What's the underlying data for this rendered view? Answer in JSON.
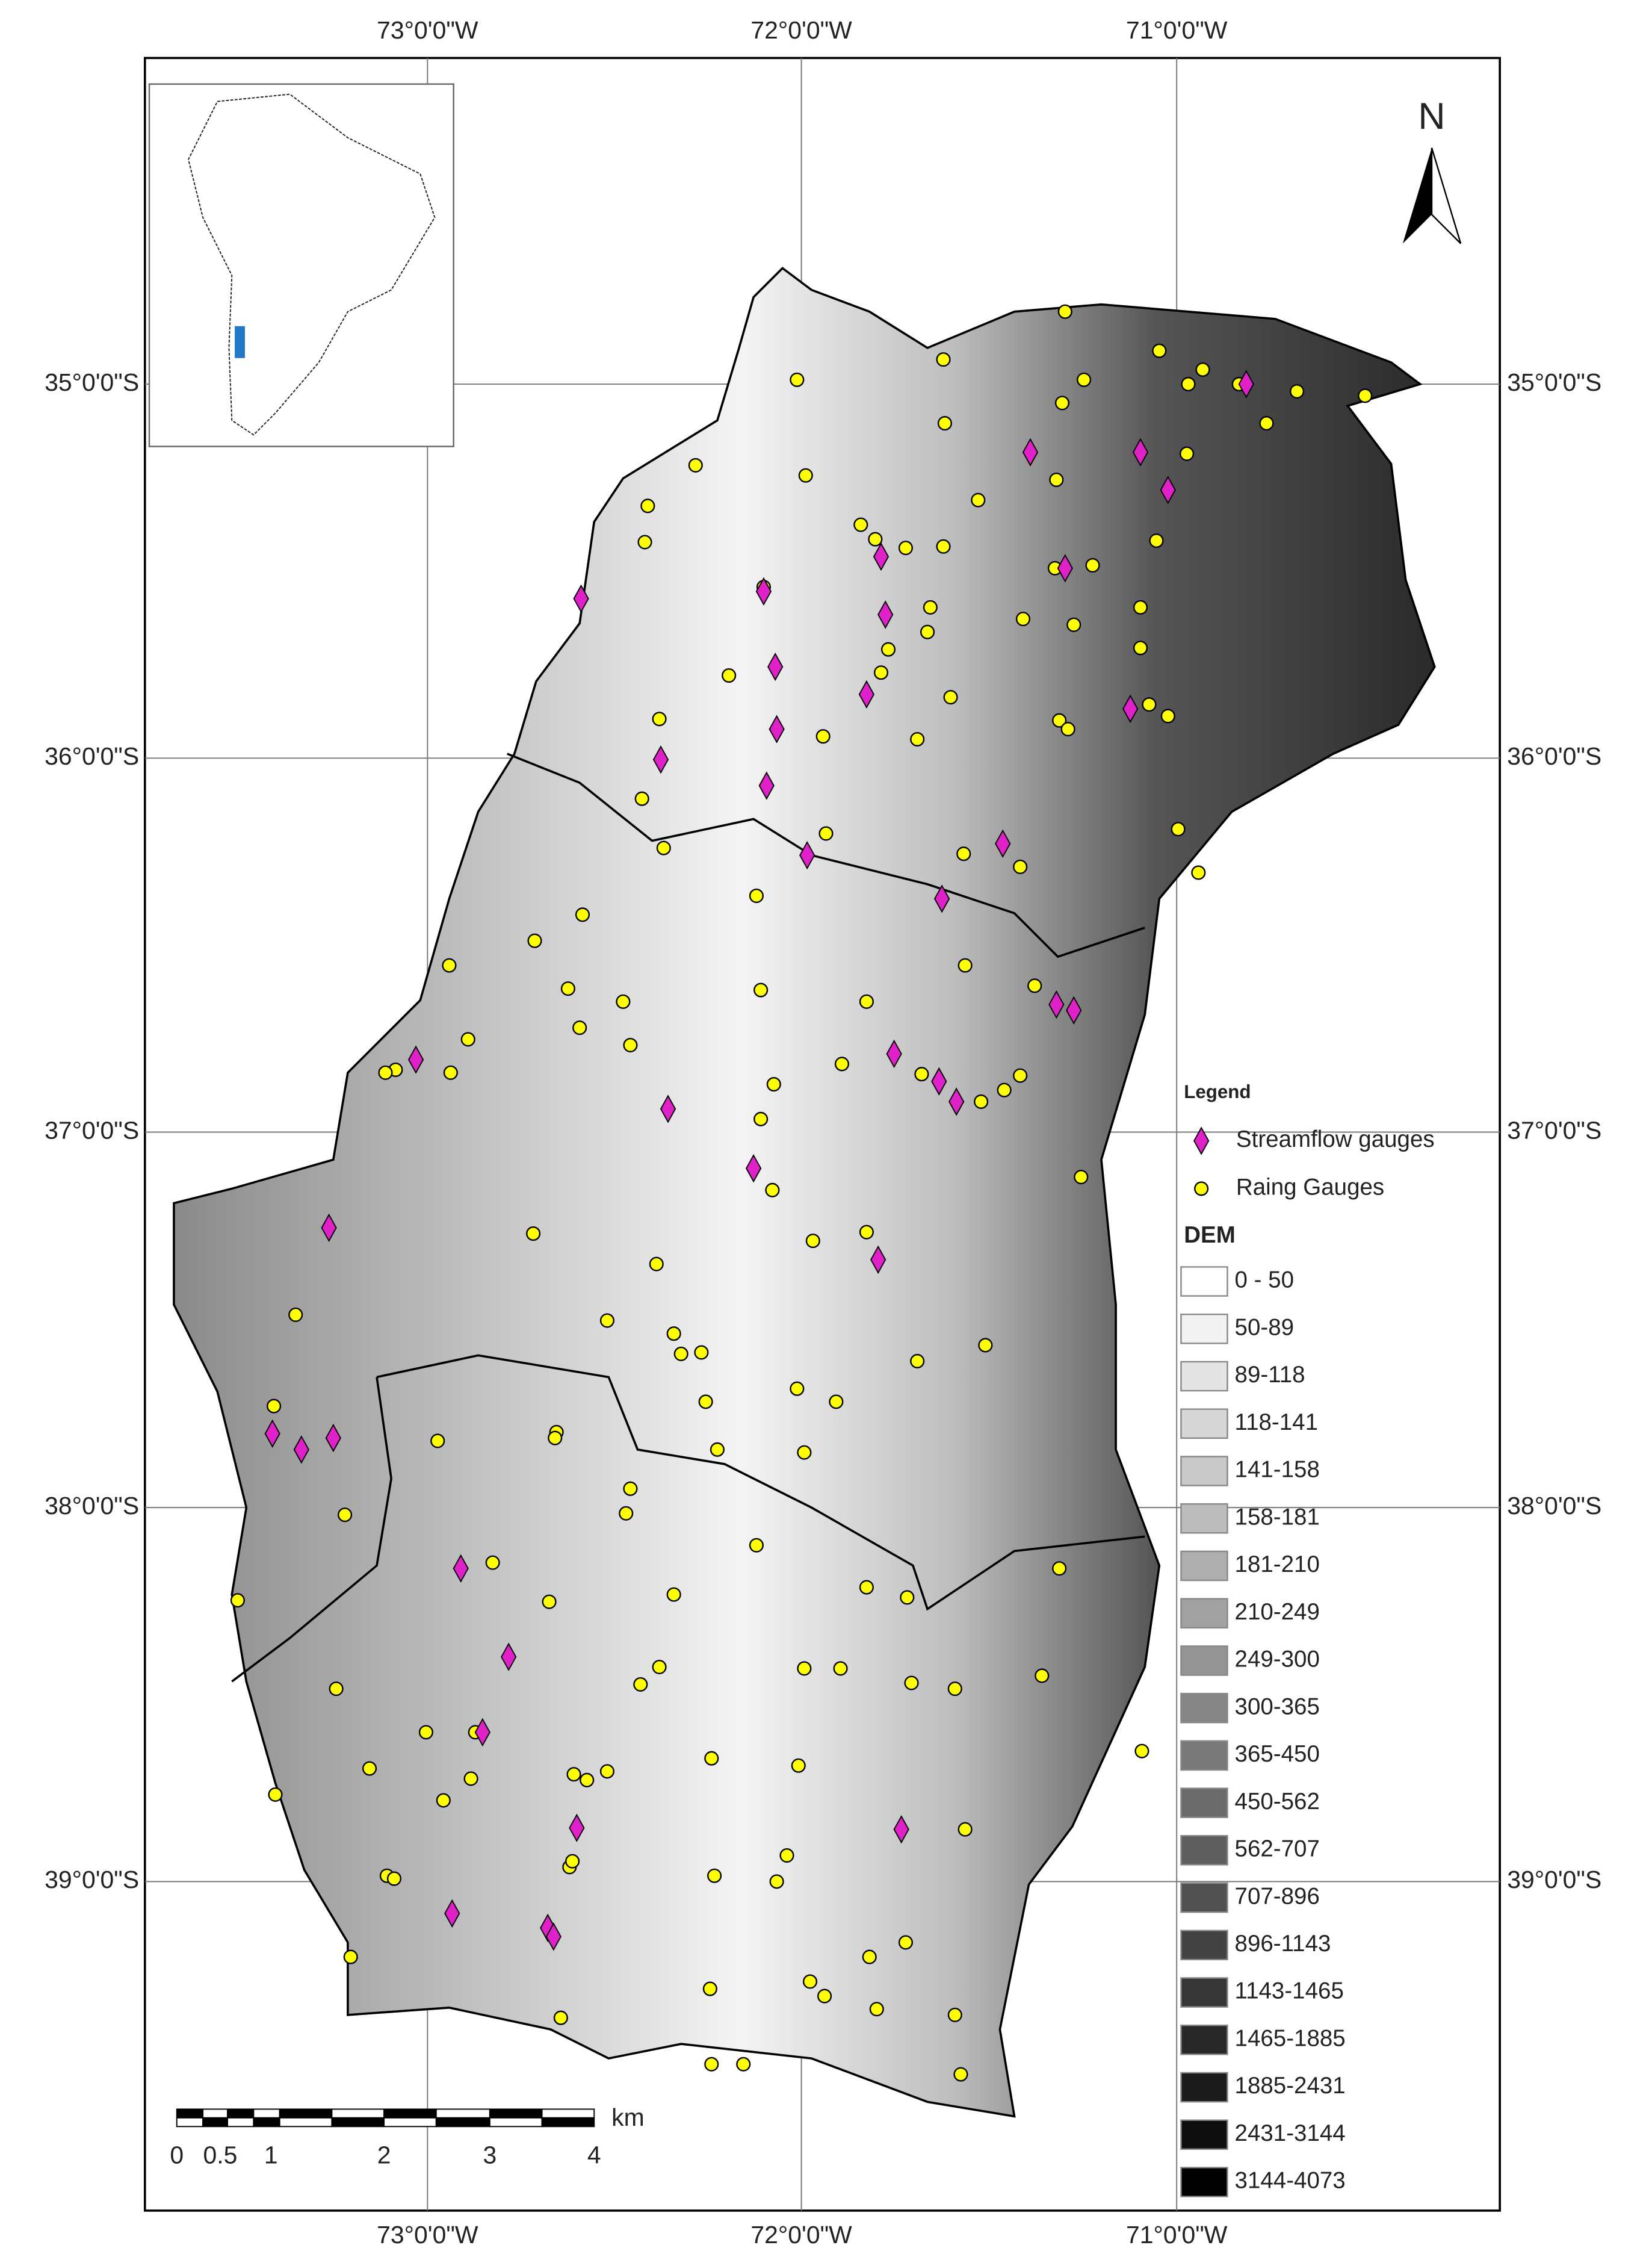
{
  "map": {
    "north_arrow": "N",
    "top_labels": [
      "73°0'0\"W",
      "72°0'0\"W",
      "71°0'0\"W"
    ],
    "bottom_labels": [
      "73°0'0\"W",
      "72°0'0\"W",
      "71°0'0\"W"
    ],
    "left_labels": [
      "35°0'0\"S",
      "36°0'0\"S",
      "37°0'0\"S",
      "38°0'0\"S",
      "39°0'0\"S"
    ],
    "right_labels": [
      "35°0'0\"S",
      "36°0'0\"S",
      "37°0'0\"S",
      "38°0'0\"S",
      "39°0'0\"S"
    ],
    "legend": {
      "title": "Legend",
      "items": [
        "Streamflow gauges",
        "Raing Gauges"
      ],
      "dem_title": "DEM",
      "dem_classes": [
        "0 - 50",
        "50-89",
        "89-118",
        "118-141",
        "141-158",
        "158-181",
        "181-210",
        "210-249",
        "249-300",
        "300-365",
        "365-450",
        "450-562",
        "562-707",
        "707-896",
        "896-1143",
        "1143-1465",
        "1465-1885",
        "1885-2431",
        "2431-3144",
        "3144-4073"
      ]
    },
    "scale_bar": {
      "unit": "km",
      "labels": [
        "0",
        "0.5",
        "1",
        "2",
        "3",
        "4"
      ]
    }
  }
}
